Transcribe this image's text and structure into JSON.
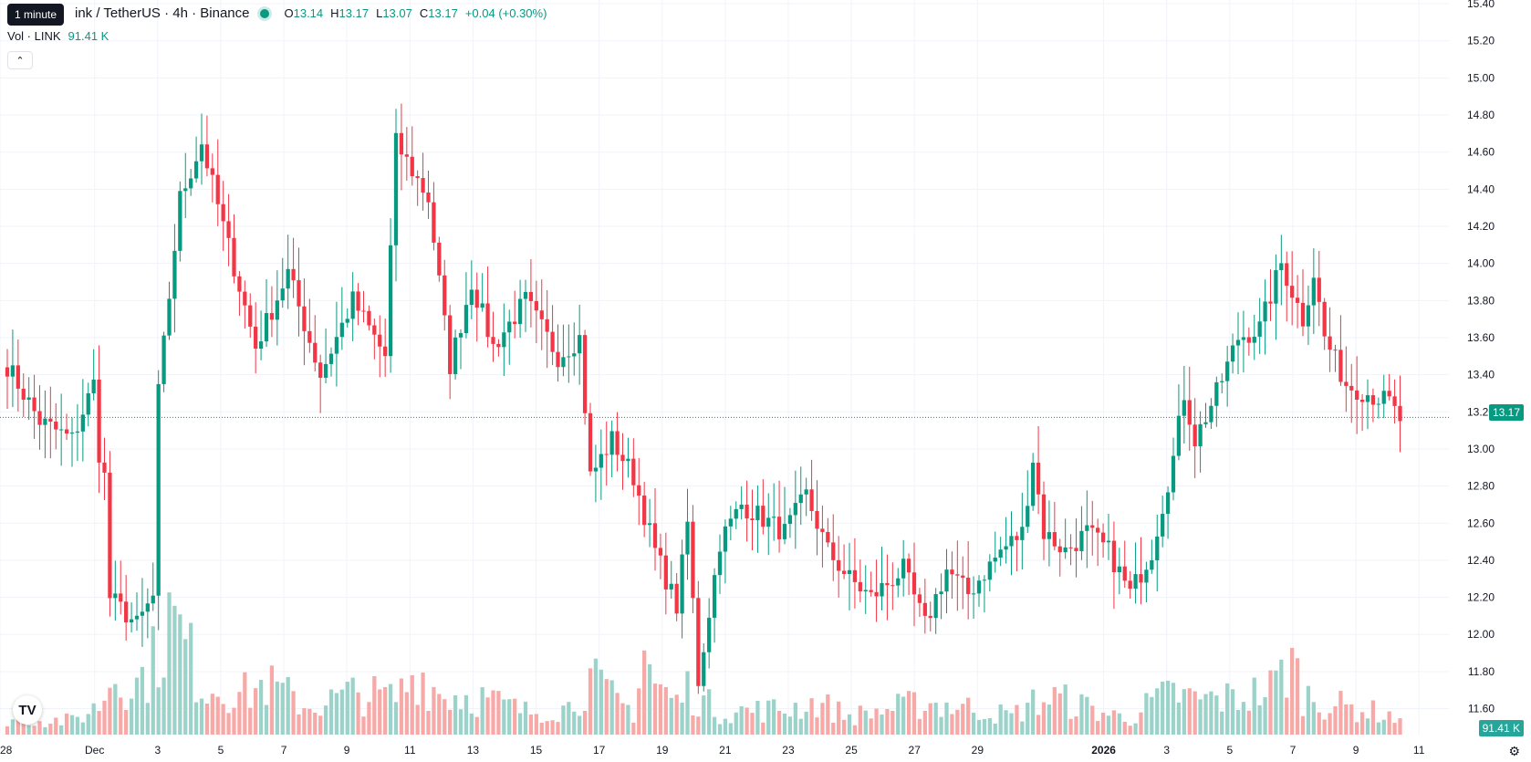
{
  "header": {
    "tooltip": "1 minute",
    "symbol": "ink / TetherUS · 4h · Binance",
    "o_label": "O",
    "o_value": "13.14",
    "h_label": "H",
    "h_value": "13.17",
    "l_label": "L",
    "l_value": "13.07",
    "c_label": "C",
    "c_value": "13.17",
    "change": "+0.04 (+0.30%)",
    "vol_label": "Vol · LINK",
    "vol_value": "91.41 K",
    "collapse_icon": "chevron-up-icon"
  },
  "badges": {
    "last_price": "13.17",
    "last_volume": "91.41 K"
  },
  "colors": {
    "up": "#089981",
    "down": "#f23645",
    "vol_up": "#9bd2c9",
    "vol_down": "#f7a9a7",
    "grid": "#f0f3fa",
    "last_line": "#089981"
  },
  "chart_data": {
    "type": "candlestick",
    "ylim": [
      11.46,
      15.42
    ],
    "last_price": 13.17,
    "y_ticks": [
      "11.60",
      "11.80",
      "12.00",
      "12.20",
      "12.40",
      "12.60",
      "12.80",
      "13.00",
      "13.20",
      "13.40",
      "13.60",
      "13.80",
      "14.00",
      "14.20",
      "14.40",
      "14.60",
      "14.80",
      "15.00",
      "15.20",
      "15.40"
    ],
    "x_ticks": [
      "28",
      "Dec",
      "3",
      "5",
      "7",
      "9",
      "11",
      "13",
      "15",
      "17",
      "19",
      "21",
      "23",
      "25",
      "27",
      "29",
      "2026",
      "3",
      "5",
      "7",
      "9",
      "11"
    ],
    "x_ticks_bold": [
      "2026"
    ],
    "candles_per_day": 6,
    "day_start_tick": 0,
    "days_span": 43,
    "anchors": [
      [
        0,
        13.45
      ],
      [
        6,
        13.15
      ],
      [
        12,
        13.05
      ],
      [
        16,
        13.35
      ],
      [
        17,
        12.98
      ],
      [
        18,
        12.85
      ],
      [
        19,
        12.2
      ],
      [
        24,
        12.05
      ],
      [
        27,
        12.2
      ],
      [
        28,
        13.3
      ],
      [
        32,
        14.35
      ],
      [
        36,
        14.65
      ],
      [
        40,
        14.2
      ],
      [
        46,
        13.55
      ],
      [
        52,
        13.95
      ],
      [
        58,
        13.4
      ],
      [
        64,
        13.8
      ],
      [
        70,
        13.5
      ],
      [
        72,
        14.65
      ],
      [
        78,
        14.35
      ],
      [
        82,
        13.45
      ],
      [
        86,
        13.9
      ],
      [
        90,
        13.55
      ],
      [
        96,
        13.8
      ],
      [
        102,
        13.5
      ],
      [
        106,
        13.6
      ],
      [
        108,
        12.85
      ],
      [
        112,
        13.05
      ],
      [
        116,
        12.85
      ],
      [
        120,
        12.45
      ],
      [
        124,
        12.15
      ],
      [
        126,
        12.6
      ],
      [
        128,
        11.75
      ],
      [
        132,
        12.5
      ],
      [
        136,
        12.7
      ],
      [
        144,
        12.55
      ],
      [
        148,
        12.75
      ],
      [
        152,
        12.45
      ],
      [
        156,
        12.3
      ],
      [
        160,
        12.2
      ],
      [
        166,
        12.35
      ],
      [
        170,
        12.05
      ],
      [
        174,
        12.35
      ],
      [
        178,
        12.22
      ],
      [
        184,
        12.45
      ],
      [
        188,
        12.55
      ],
      [
        190,
        12.95
      ],
      [
        192,
        12.55
      ],
      [
        196,
        12.45
      ],
      [
        200,
        12.55
      ],
      [
        204,
        12.45
      ],
      [
        208,
        12.22
      ],
      [
        212,
        12.45
      ],
      [
        216,
        12.95
      ],
      [
        218,
        13.3
      ],
      [
        220,
        13.05
      ],
      [
        224,
        13.3
      ],
      [
        228,
        13.6
      ],
      [
        232,
        13.65
      ],
      [
        236,
        14.0
      ],
      [
        240,
        13.7
      ],
      [
        242,
        13.95
      ],
      [
        244,
        13.6
      ],
      [
        248,
        13.35
      ],
      [
        252,
        13.3
      ],
      [
        256,
        13.25
      ],
      [
        258,
        13.15
      ]
    ],
    "volume_ylim": [
      0,
      230
    ],
    "volume_profile": [
      [
        0,
        18
      ],
      [
        12,
        15
      ],
      [
        16,
        28
      ],
      [
        18,
        40
      ],
      [
        19,
        65
      ],
      [
        24,
        55
      ],
      [
        27,
        80
      ],
      [
        30,
        125
      ],
      [
        32,
        110
      ],
      [
        36,
        55
      ],
      [
        44,
        45
      ],
      [
        48,
        55
      ],
      [
        56,
        30
      ],
      [
        64,
        45
      ],
      [
        72,
        40
      ],
      [
        76,
        70
      ],
      [
        80,
        45
      ],
      [
        88,
        40
      ],
      [
        96,
        25
      ],
      [
        104,
        30
      ],
      [
        108,
        60
      ],
      [
        112,
        40
      ],
      [
        116,
        25
      ],
      [
        118,
        95
      ],
      [
        120,
        55
      ],
      [
        124,
        35
      ],
      [
        126,
        50
      ],
      [
        128,
        40
      ],
      [
        132,
        25
      ],
      [
        144,
        28
      ],
      [
        150,
        35
      ],
      [
        156,
        20
      ],
      [
        170,
        35
      ],
      [
        180,
        28
      ],
      [
        186,
        20
      ],
      [
        190,
        35
      ],
      [
        194,
        40
      ],
      [
        200,
        30
      ],
      [
        204,
        22
      ],
      [
        208,
        18
      ],
      [
        212,
        35
      ],
      [
        216,
        45
      ],
      [
        220,
        38
      ],
      [
        228,
        40
      ],
      [
        234,
        50
      ],
      [
        238,
        80
      ],
      [
        240,
        45
      ],
      [
        244,
        35
      ],
      [
        248,
        30
      ],
      [
        256,
        22
      ],
      [
        258,
        12
      ]
    ]
  }
}
